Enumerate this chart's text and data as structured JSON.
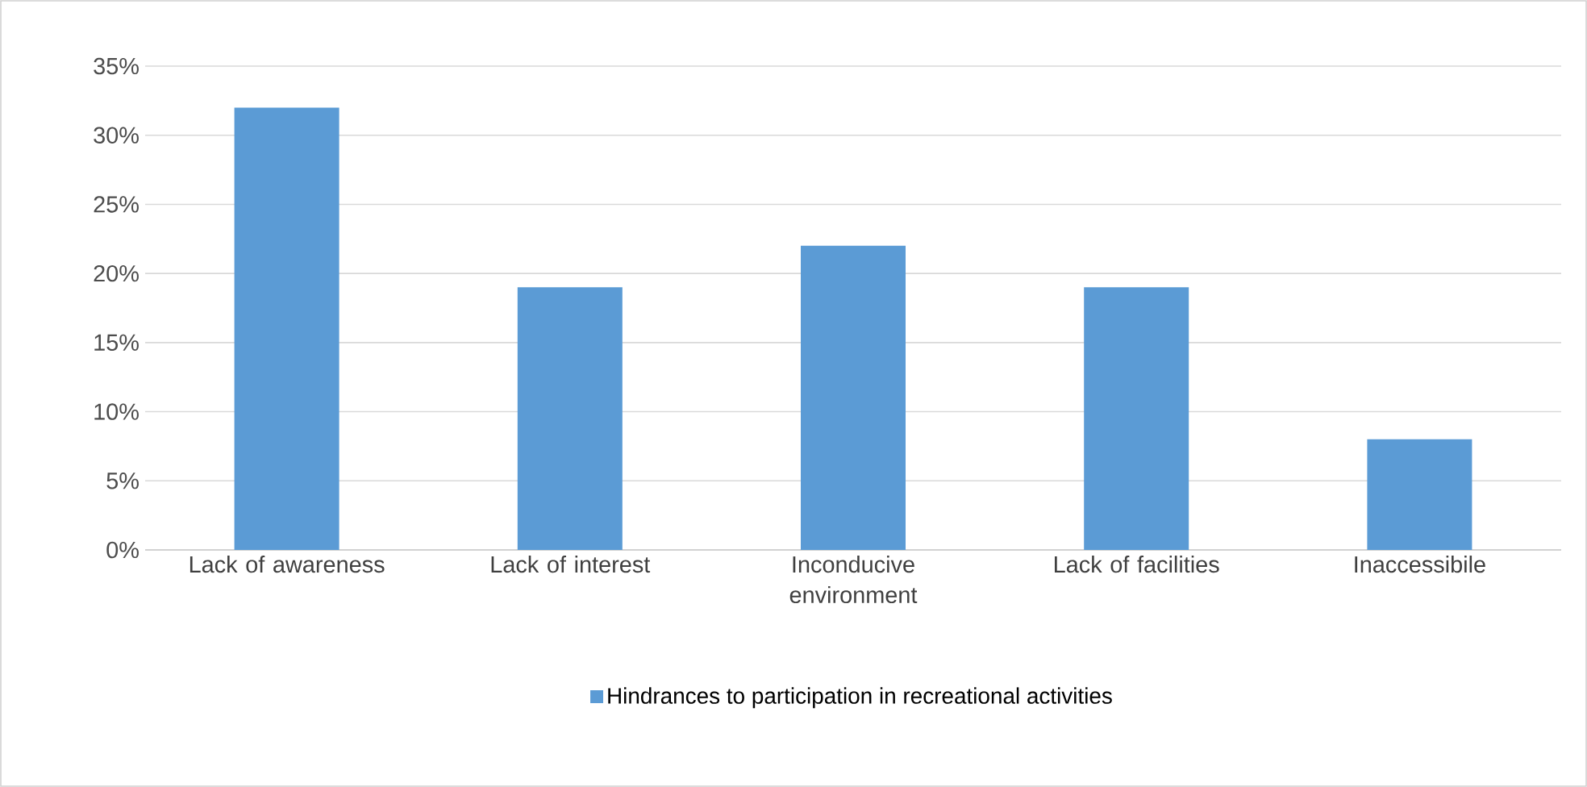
{
  "chart_data": {
    "type": "bar",
    "categories": [
      "Lack of awareness",
      "Lack of interest",
      "Inconducive environment",
      "Lack of facilities",
      "Inaccessibile"
    ],
    "series": [
      {
        "name": "Hindrances to participation in recreational activities",
        "color": "#5b9bd5",
        "values": [
          32,
          19,
          22,
          19,
          8
        ]
      }
    ],
    "ylim": [
      0,
      35
    ],
    "yticks": [
      {
        "value": 0,
        "label": "0%"
      },
      {
        "value": 5,
        "label": "5%"
      },
      {
        "value": 10,
        "label": "10%"
      },
      {
        "value": 15,
        "label": "15%"
      },
      {
        "value": 20,
        "label": "20%"
      },
      {
        "value": 25,
        "label": "25%"
      },
      {
        "value": 30,
        "label": "30%"
      },
      {
        "value": 35,
        "label": "35%"
      }
    ],
    "grid": "y",
    "legend": "bottom"
  }
}
